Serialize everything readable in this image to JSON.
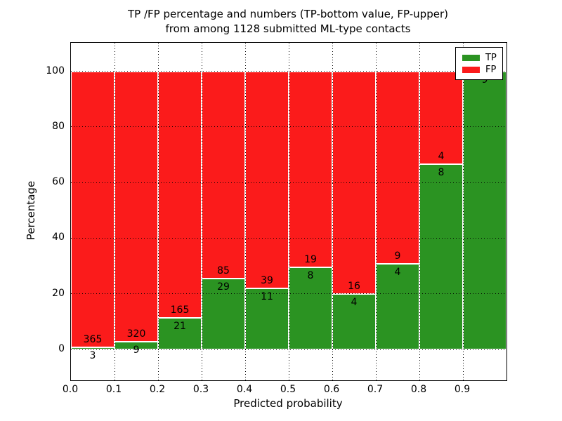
{
  "figure": {
    "title_line1": "TP /FP percentage and numbers (TP-bottom value, FP-upper)",
    "title_line2": "from among 1128 submitted ML-type contacts"
  },
  "axes": {
    "xlabel": "Predicted probability",
    "ylabel": "Percentage",
    "x_tick_labels": [
      "0.0",
      "0.1",
      "0.2",
      "0.3",
      "0.4",
      "0.5",
      "0.6",
      "0.7",
      "0.8",
      "0.9"
    ],
    "y_tick_labels": [
      "0",
      "20",
      "40",
      "60",
      "80",
      "100"
    ],
    "y_tick_values": [
      0,
      20,
      40,
      60,
      80,
      100
    ]
  },
  "legend": {
    "position": "upper right",
    "items": [
      {
        "label": "TP",
        "color": "#2b9322"
      },
      {
        "label": "FP",
        "color": "#fb1b1b"
      }
    ]
  },
  "chart_data": {
    "type": "bar",
    "stacked": true,
    "normalized_to_percent": true,
    "title": "TP /FP percentage and numbers (TP-bottom value, FP-upper) from among 1128 submitted ML-type contacts",
    "xlabel": "Predicted probability",
    "ylabel": "Percentage",
    "xlim": [
      0.0,
      1.0
    ],
    "ylim": [
      -10,
      110
    ],
    "grid": "dotted",
    "bin_start": [
      0.0,
      0.1,
      0.2,
      0.3,
      0.4,
      0.5,
      0.6,
      0.7,
      0.8,
      0.9
    ],
    "bin_width": 0.1,
    "series": [
      {
        "name": "TP",
        "color": "#2b9322",
        "counts": [
          3,
          9,
          21,
          29,
          11,
          8,
          4,
          4,
          8,
          9
        ]
      },
      {
        "name": "FP",
        "color": "#fb1b1b",
        "counts": [
          365,
          320,
          165,
          85,
          39,
          19,
          16,
          9,
          4,
          0
        ]
      }
    ],
    "tp_percent": [
      0.82,
      2.74,
      11.29,
      25.44,
      22.0,
      29.63,
      20.0,
      30.77,
      66.67,
      100.0
    ],
    "total_contacts": 1128,
    "legend_position": "upper right"
  },
  "colors": {
    "tp": "#2b9322",
    "fp": "#fb1b1b",
    "background": "#ffffff",
    "grid": "#000000",
    "bar_edge": "#ffffff",
    "spine": "#000000"
  }
}
